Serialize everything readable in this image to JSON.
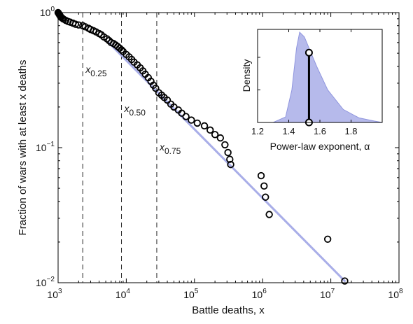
{
  "chart_data": [
    {
      "type": "scatter",
      "scale": {
        "x": "log",
        "y": "log"
      },
      "xlabel": "Battle deaths, x",
      "ylabel": "Fraction of wars with at least x deaths",
      "xlim": [
        1000,
        100000000
      ],
      "ylim": [
        0.01,
        1
      ],
      "x_ticks": [
        {
          "value": 1000,
          "base": "10",
          "exp": "3"
        },
        {
          "value": 10000,
          "base": "10",
          "exp": "4"
        },
        {
          "value": 100000,
          "base": "10",
          "exp": "5"
        },
        {
          "value": 1000000,
          "base": "10",
          "exp": "6"
        },
        {
          "value": 10000000,
          "base": "10",
          "exp": "7"
        },
        {
          "value": 100000000,
          "base": "10",
          "exp": "8"
        }
      ],
      "y_ticks": [
        {
          "value": 1,
          "base": "10",
          "exp": "0"
        },
        {
          "value": 0.1,
          "base": "10",
          "exp": "−1"
        },
        {
          "value": 0.01,
          "base": "10",
          "exp": "−2"
        }
      ],
      "quantile_lines": [
        {
          "x": 2300,
          "symbol": "x",
          "subscript": "0.25"
        },
        {
          "x": 8500,
          "symbol": "x",
          "subscript": "0.50"
        },
        {
          "x": 28000,
          "symbol": "x",
          "subscript": "0.75"
        }
      ],
      "fit_line": {
        "from": [
          5500,
          0.6
        ],
        "to": [
          16000000,
          0.0103
        ],
        "color": "#a9aee8"
      },
      "series": [
        {
          "marker": "open-circle",
          "points": [
            [
              1000,
              1.0
            ],
            [
              1020,
              0.985
            ],
            [
              1040,
              0.97
            ],
            [
              1060,
              0.955
            ],
            [
              1080,
              0.94
            ],
            [
              1100,
              0.925
            ],
            [
              1150,
              0.91
            ],
            [
              1200,
              0.895
            ],
            [
              1300,
              0.875
            ],
            [
              1400,
              0.86
            ],
            [
              1500,
              0.85
            ],
            [
              1650,
              0.835
            ],
            [
              1800,
              0.82
            ],
            [
              2000,
              0.81
            ],
            [
              2300,
              0.8
            ],
            [
              2500,
              0.785
            ],
            [
              2800,
              0.765
            ],
            [
              3000,
              0.75
            ],
            [
              3300,
              0.735
            ],
            [
              3600,
              0.72
            ],
            [
              4000,
              0.7
            ],
            [
              4300,
              0.685
            ],
            [
              4700,
              0.66
            ],
            [
              5200,
              0.64
            ],
            [
              5600,
              0.62
            ],
            [
              6000,
              0.6
            ],
            [
              6500,
              0.59
            ],
            [
              7000,
              0.575
            ],
            [
              7500,
              0.56
            ],
            [
              8000,
              0.545
            ],
            [
              8500,
              0.53
            ],
            [
              9000,
              0.515
            ],
            [
              10000,
              0.49
            ],
            [
              11000,
              0.47
            ],
            [
              12000,
              0.45
            ],
            [
              13000,
              0.43
            ],
            [
              14500,
              0.41
            ],
            [
              16000,
              0.39
            ],
            [
              17500,
              0.37
            ],
            [
              19000,
              0.35
            ],
            [
              21000,
              0.33
            ],
            [
              23000,
              0.31
            ],
            [
              25000,
              0.29
            ],
            [
              27000,
              0.275
            ],
            [
              30000,
              0.255
            ],
            [
              33000,
              0.245
            ],
            [
              36000,
              0.235
            ],
            [
              40000,
              0.225
            ],
            [
              45000,
              0.21
            ],
            [
              50000,
              0.2
            ],
            [
              58000,
              0.19
            ],
            [
              65000,
              0.18
            ],
            [
              75000,
              0.17
            ],
            [
              90000,
              0.16
            ],
            [
              110000,
              0.152
            ],
            [
              140000,
              0.145
            ],
            [
              170000,
              0.135
            ],
            [
              200000,
              0.125
            ],
            [
              240000,
              0.118
            ],
            [
              280000,
              0.105
            ],
            [
              310000,
              0.092
            ],
            [
              330000,
              0.082
            ],
            [
              340000,
              0.075
            ],
            [
              950000,
              0.062
            ],
            [
              1050000,
              0.052
            ],
            [
              1100000,
              0.043
            ],
            [
              1250000,
              0.032
            ],
            [
              9000000,
              0.021
            ],
            [
              16000000,
              0.0103
            ]
          ]
        }
      ]
    },
    {
      "type": "area",
      "xlabel": "Power-law exponent, α",
      "ylabel": "Density",
      "xlim": [
        1.2,
        2.0
      ],
      "x_ticks": [
        "1.2",
        "1.4",
        "1.6",
        "1.8"
      ],
      "x_tick_values": [
        1.2,
        1.4,
        1.6,
        1.8
      ],
      "fill_color": "#a9aee8",
      "density_curve": {
        "alpha": [
          1.2,
          1.3,
          1.38,
          1.42,
          1.45,
          1.47,
          1.5,
          1.53,
          1.58,
          1.65,
          1.75,
          1.85,
          1.95,
          2.0
        ],
        "density": [
          0.0,
          0.0,
          0.06,
          0.35,
          0.8,
          0.97,
          0.92,
          0.8,
          0.6,
          0.35,
          0.14,
          0.05,
          0.015,
          0.0
        ]
      },
      "estimate": {
        "alpha": 1.53,
        "density_low": 0.0,
        "density_high": 0.75
      }
    }
  ]
}
